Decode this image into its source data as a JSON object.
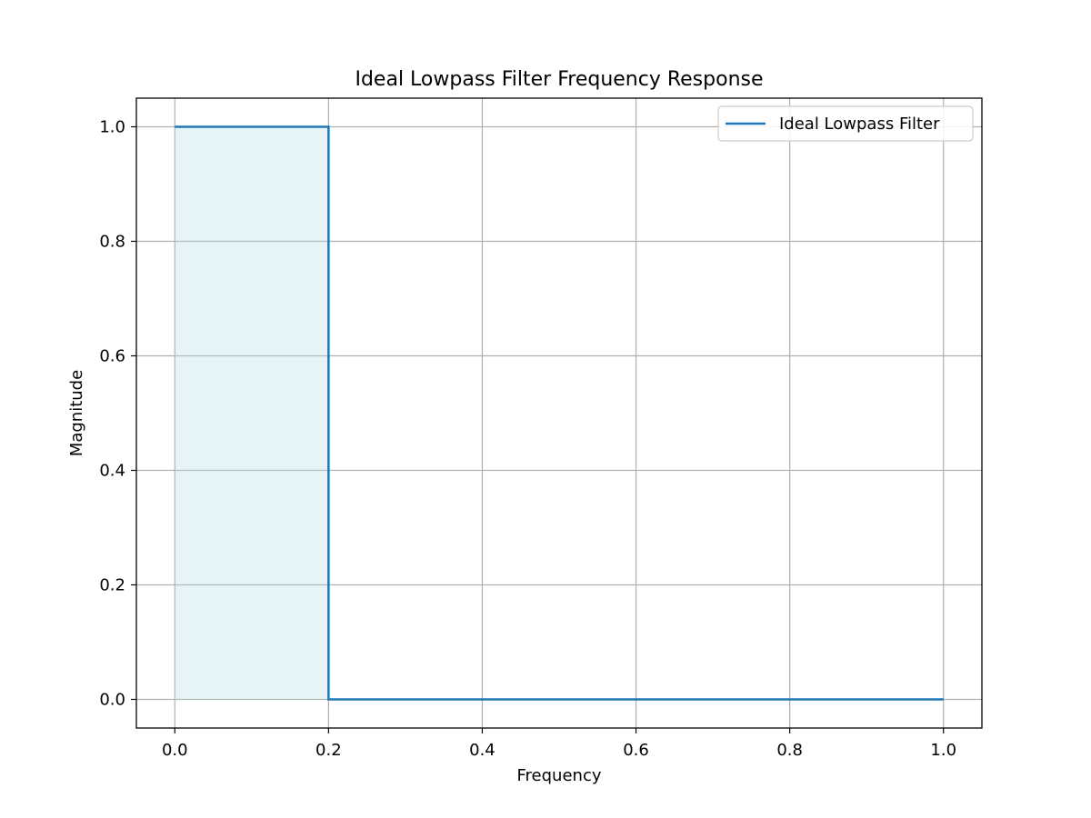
{
  "chart_data": {
    "type": "line",
    "title": "Ideal Lowpass Filter Frequency Response",
    "xlabel": "Frequency",
    "ylabel": "Magnitude",
    "xlim": [
      -0.05,
      1.05
    ],
    "ylim": [
      -0.05,
      1.05
    ],
    "xticks": [
      0.0,
      0.2,
      0.4,
      0.6,
      0.8,
      1.0
    ],
    "xtick_labels": [
      "0.0",
      "0.2",
      "0.4",
      "0.6",
      "0.8",
      "1.0"
    ],
    "yticks": [
      0.0,
      0.2,
      0.4,
      0.6,
      0.8,
      1.0
    ],
    "ytick_labels": [
      "0.0",
      "0.2",
      "0.4",
      "0.6",
      "0.8",
      "1.0"
    ],
    "grid": true,
    "legend_position": "upper right",
    "series": [
      {
        "name": "Ideal Lowpass Filter",
        "color": "#1f77b4",
        "x": [
          0.0,
          0.2,
          0.2,
          1.0
        ],
        "y": [
          1.0,
          1.0,
          0.0,
          0.0
        ]
      }
    ],
    "fill": {
      "x_range": [
        0.0,
        0.2
      ],
      "y_range": [
        0.0,
        1.0
      ],
      "color": "#add8e6",
      "opacity": 0.3
    }
  }
}
